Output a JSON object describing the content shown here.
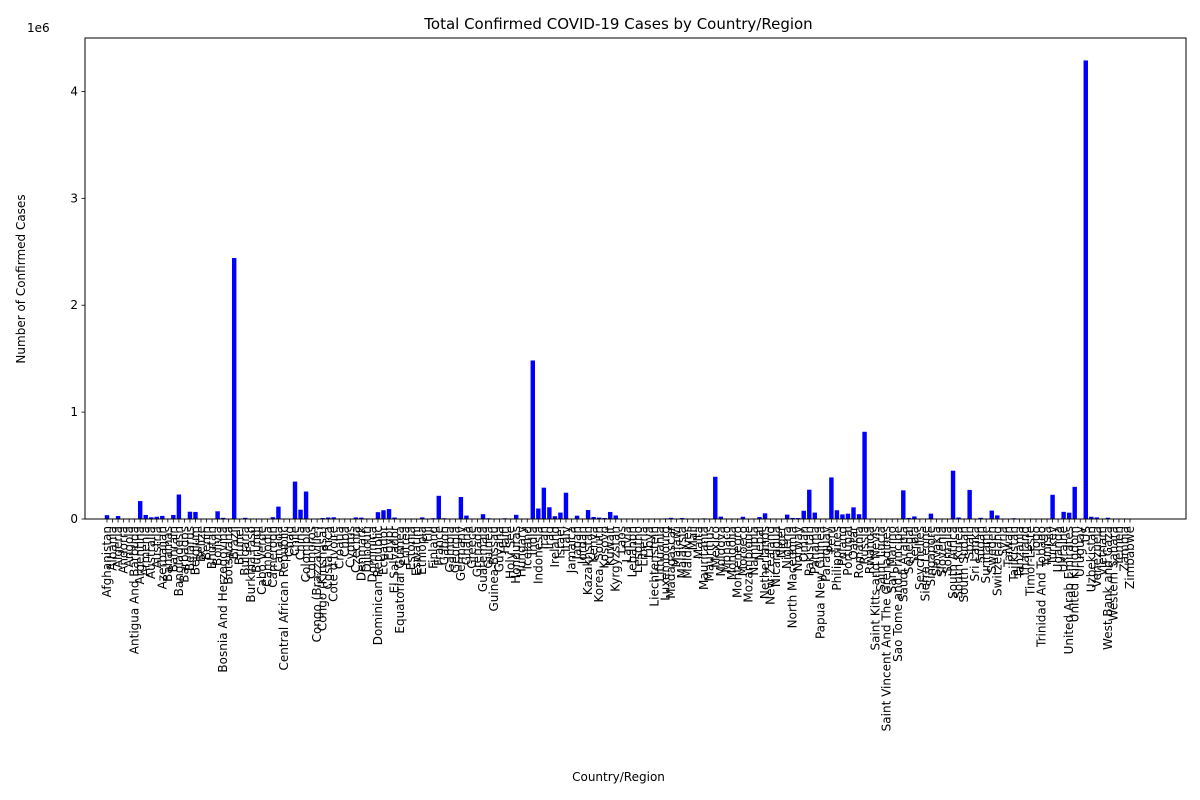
{
  "chart_data": {
    "type": "bar",
    "title": "Total Confirmed COVID-19 Cases by Country/Region",
    "xlabel": "Country/Region",
    "ylabel": "Number of Confirmed Cases",
    "offset_label": "1e6",
    "ylim": [
      0,
      4.5
    ],
    "yticks": [
      0,
      1,
      2,
      3,
      4
    ],
    "ytick_labels": [
      "0",
      "1",
      "2",
      "3",
      "4"
    ],
    "y_unit_multiplier": 1000000,
    "bar_color": "#0000ff",
    "grid": false,
    "categories": [
      "Afghanistan",
      "Albania",
      "Algeria",
      "Andorra",
      "Angola",
      "Antigua And Barbuda",
      "Argentina",
      "Armenia",
      "Australia",
      "Austria",
      "Azerbaijan",
      "Bahamas",
      "Bahrain",
      "Bangladesh",
      "Barbados",
      "Belarus",
      "Belgium",
      "Belize",
      "Benin",
      "Bhutan",
      "Bolivia",
      "Bosnia And Herzegovina",
      "Botswana",
      "Brazil",
      "Brunei",
      "Bulgaria",
      "Burkina Faso",
      "Burundi",
      "Cabo Verde",
      "Cambodia",
      "Cameroon",
      "Canada",
      "Central African Republic",
      "Chad",
      "Chile",
      "China",
      "Colombia",
      "Comoros",
      "Congo (Brazzaville)",
      "Congo (Kinshasa)",
      "Costa Rica",
      "Cote d'Ivoire",
      "Croatia",
      "Cuba",
      "Cyprus",
      "Czechia",
      "Denmark",
      "Djibouti",
      "Dominica",
      "Dominican Republic",
      "Ecuador",
      "Egypt",
      "El Salvador",
      "Equatorial Guinea",
      "Eritrea",
      "Estonia",
      "Eswatini",
      "Ethiopia",
      "Fiji",
      "Finland",
      "France",
      "Gabon",
      "Gambia",
      "Georgia",
      "Germany",
      "Ghana",
      "Greece",
      "Grenada",
      "Guatemala",
      "Guinea",
      "Guinea-Bissau",
      "Guyana",
      "Haiti",
      "Holy See",
      "Honduras",
      "Hungary",
      "Iceland",
      "India",
      "Indonesia",
      "Iran",
      "Iraq",
      "Ireland",
      "Israel",
      "Italy",
      "Jamaica",
      "Japan",
      "Jordan",
      "Kazakhstan",
      "Kenya",
      "Korea, South",
      "Kosovo",
      "Kuwait",
      "Kyrgyzstan",
      "Laos",
      "Latvia",
      "Lebanon",
      "Lesotho",
      "Liberia",
      "Libya",
      "Liechtenstein",
      "Lithuania",
      "Luxembourg",
      "Madagascar",
      "Malawi",
      "Malaysia",
      "Maldives",
      "Mali",
      "Malta",
      "Mauritania",
      "Mauritius",
      "Mexico",
      "Moldova",
      "Monaco",
      "Mongolia",
      "Montenegro",
      "Morocco",
      "Mozambique",
      "Namibia",
      "Nepal",
      "Netherlands",
      "New Zealand",
      "Nicaragua",
      "Niger",
      "Nigeria",
      "North Macedonia",
      "Norway",
      "Oman",
      "Pakistan",
      "Panama",
      "Papua New Guinea",
      "Paraguay",
      "Peru",
      "Philippines",
      "Poland",
      "Portugal",
      "Qatar",
      "Romania",
      "Russia",
      "Rwanda",
      "Saint Kitts and Nevis",
      "Saint Lucia",
      "Saint Vincent And The Grenadines",
      "San Marino",
      "Sao Tome and Principe",
      "Saudi Arabia",
      "Senegal",
      "Serbia",
      "Seychelles",
      "Sierra Leone",
      "Singapore",
      "Slovakia",
      "Slovenia",
      "Somalia",
      "South Africa",
      "South Korea",
      "South Sudan",
      "Spain",
      "Sri Lanka",
      "Sudan",
      "Suriname",
      "Sweden",
      "Switzerland",
      "Syria",
      "Taiwan",
      "Tajikistan",
      "Tanzania",
      "Thailand",
      "Timor-Leste",
      "Togo",
      "Trinidad And Tobago",
      "Tunisia",
      "Turkey",
      "Uganda",
      "Ukraine",
      "United Arab Emirates",
      "United Kingdom",
      "Uruguay",
      "US",
      "Uzbekistan",
      "Venezuela",
      "Vietnam",
      "West Bank and Gaza",
      "Western Sahara",
      "Yemen",
      "Zambia",
      "Zimbabwe"
    ],
    "values": [
      0.036,
      0.005,
      0.028,
      0.001,
      0.001,
      0.0001,
      0.168,
      0.038,
      0.016,
      0.021,
      0.029,
      0.0005,
      0.038,
      0.229,
      0.0001,
      0.068,
      0.066,
      0.0005,
      0.001,
      0.0001,
      0.072,
      0.011,
      0.001,
      2.442,
      0.0001,
      0.011,
      0.001,
      0.0004,
      0.002,
      0.0002,
      0.017,
      0.116,
      0.004,
      0.001,
      0.35,
      0.087,
      0.257,
      0.0003,
      0.003,
      0.009,
      0.014,
      0.016,
      0.004,
      0.002,
      0.001,
      0.015,
      0.013,
      0.005,
      2e-05,
      0.064,
      0.082,
      0.093,
      0.014,
      0.003,
      0.0003,
      0.002,
      0.002,
      0.015,
      2e-05,
      0.007,
      0.217,
      0.007,
      0.0003,
      0.001,
      0.206,
      0.032,
      0.004,
      2e-05,
      0.045,
      0.007,
      0.002,
      0.0004,
      0.007,
      1e-05,
      0.039,
      0.004,
      0.002,
      1.483,
      0.098,
      0.293,
      0.11,
      0.026,
      0.06,
      0.246,
      0.001,
      0.031,
      0.001,
      0.084,
      0.019,
      0.013,
      0.009,
      0.066,
      0.033,
      2e-05,
      0.001,
      0.004,
      0.0003,
      0.001,
      0.002,
      0.0001,
      0.002,
      0.006,
      0.011,
      0.003,
      0.009,
      0.003,
      0.002,
      0.001,
      0.006,
      0.0003,
      0.395,
      0.022,
      0.0001,
      0.0003,
      0.002,
      0.021,
      0.001,
      0.001,
      0.018,
      0.053,
      0.002,
      0.003,
      0.001,
      0.041,
      0.01,
      0.009,
      0.077,
      0.274,
      0.06,
      0.0001,
      0.004,
      0.389,
      0.082,
      0.043,
      0.05,
      0.109,
      0.045,
      0.816,
      0.001,
      2e-05,
      2e-05,
      5e-05,
      0.0007,
      0.0008,
      0.268,
      0.01,
      0.024,
      0.0001,
      0.002,
      0.05,
      0.002,
      0.002,
      0.003,
      0.452,
      0.014,
      0.002,
      0.272,
      0.003,
      0.011,
      0.001,
      0.079,
      0.034,
      0.001,
      0.0005,
      0.007,
      0.0005,
      0.003,
      2e-05,
      0.001,
      0.0001,
      0.0014,
      0.227,
      0.001,
      0.067,
      0.059,
      0.301,
      0.001,
      4.29,
      0.021,
      0.015,
      0.0004,
      0.012,
      1e-05,
      0.002,
      0.005,
      0.002
    ]
  }
}
